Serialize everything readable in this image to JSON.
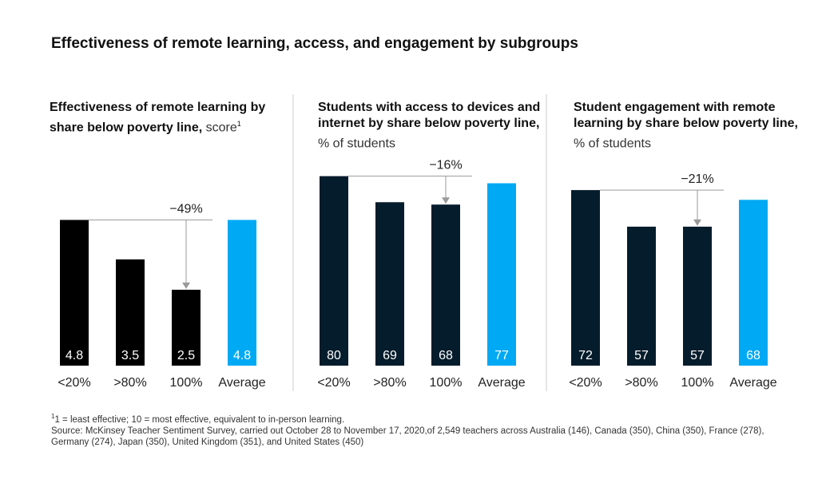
{
  "title": "Effectiveness of remote learning, access, and engagement by subgroups",
  "panels": [
    {
      "title_bold": "Effectiveness of remote learning by share below poverty line,",
      "title_unit": "score",
      "title_sup": "1"
    },
    {
      "title_bold": "Students with access to devices and internet by share below poverty line,",
      "title_unit": "% of students",
      "title_sup": ""
    },
    {
      "title_bold": "Student engagement with remote learning by share below poverty line,",
      "title_unit": "% of students",
      "title_sup": ""
    }
  ],
  "colors": {
    "dark_1": "#000000",
    "dark_2": "#051c2c",
    "average": "#00a9f4",
    "divider": "#cccccc",
    "arrow": "#9a9a9a"
  },
  "chart_data": [
    {
      "type": "bar",
      "categories": [
        "<20%",
        ">80%",
        "100%",
        "Average"
      ],
      "values": [
        4.8,
        3.5,
        2.5,
        4.8
      ],
      "value_labels": [
        "4.8",
        "3.5",
        "2.5",
        "4.8"
      ],
      "annotation": "−49%",
      "ylim": [
        0,
        7.1
      ]
    },
    {
      "type": "bar",
      "categories": [
        "<20%",
        ">80%",
        "100%",
        "Average"
      ],
      "values": [
        80,
        69,
        68,
        77
      ],
      "value_labels": [
        "80",
        "69",
        "68",
        "77"
      ],
      "annotation": "−16%",
      "ylim": [
        0,
        91
      ]
    },
    {
      "type": "bar",
      "categories": [
        "<20%",
        ">80%",
        "100%",
        "Average"
      ],
      "values": [
        72,
        57,
        57,
        68
      ],
      "value_labels": [
        "72",
        "57",
        "57",
        "68"
      ],
      "annotation": "−21%",
      "ylim": [
        0,
        88.4
      ]
    }
  ],
  "footnote": {
    "line1_sup": "1",
    "line1": "1 = least effective; 10 = most effective, equivalent to in-person learning.",
    "source": "Source: McKinsey Teacher Sentiment Survey, carried out October 28 to November 17, 2020,of 2,549 teachers across Australia (146), Canada (350), China (350), France (278), Germany (274), Japan (350), United Kingdom (351), and United States (450)"
  }
}
